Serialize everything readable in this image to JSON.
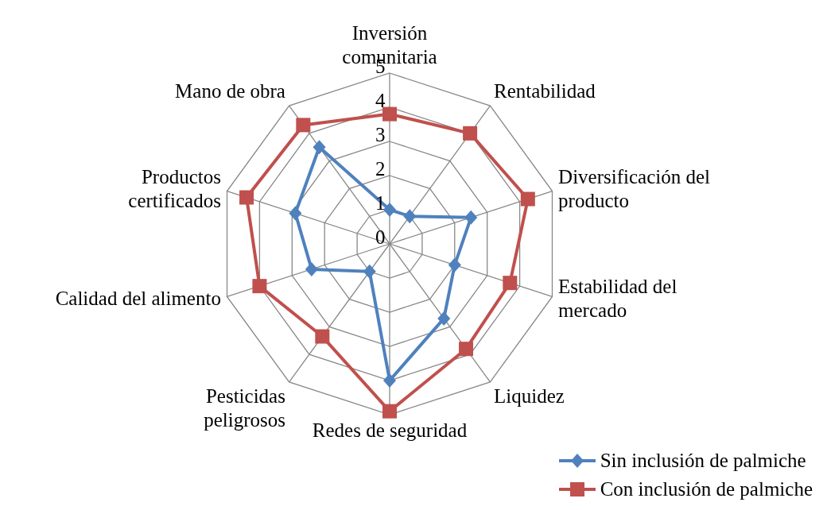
{
  "chart_data": {
    "type": "radar",
    "categories": [
      "Inversión comunitaria",
      "Rentabilidad",
      "Diversificación del producto",
      "Estabilidad del mercado",
      "Liquidez",
      "Redes de seguridad",
      "Pesticidas peligrosos",
      "Calidad del alimento",
      "Productos certificados",
      "Mano de obra"
    ],
    "series": [
      {
        "name": "Sin inclusión de palmiche",
        "color": "#4f81bd",
        "marker": "diamond",
        "values": [
          1,
          1,
          2.5,
          2,
          2.7,
          4,
          1,
          2.4,
          2.9,
          3.5
        ]
      },
      {
        "name": "Con inclusión de palmiche",
        "color": "#c0504d",
        "marker": "square",
        "values": [
          3.8,
          4,
          4.25,
          3.7,
          3.8,
          4.9,
          3.35,
          4,
          4.4,
          4.3
        ]
      }
    ],
    "ylim": [
      0,
      5
    ],
    "yticks": [
      0,
      1,
      2,
      3,
      4,
      5
    ],
    "grid": true,
    "legend": "bottom right"
  }
}
